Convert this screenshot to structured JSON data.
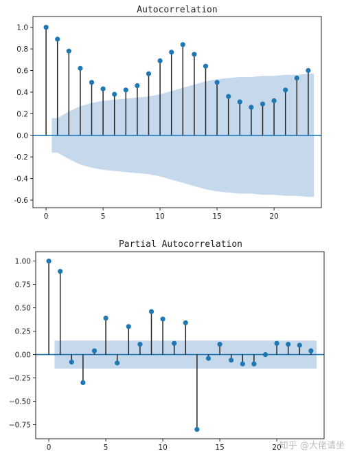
{
  "chart_data": [
    {
      "type": "stem",
      "title": "Autocorrelation",
      "xlabel": "",
      "ylabel": "",
      "xlim": [
        -1.15,
        24.15
      ],
      "ylim": [
        -0.67,
        1.1
      ],
      "xticks": [
        0,
        5,
        10,
        15,
        20
      ],
      "yticks": [
        1.0,
        0.8,
        0.6,
        0.4,
        0.2,
        0.0,
        -0.2,
        -0.4,
        -0.6
      ],
      "ytick_labels": [
        "1.0",
        "0.8",
        "0.6",
        "0.4",
        "0.2",
        "0.0",
        "-0.2",
        "-0.4",
        "-0.6"
      ],
      "x": [
        0,
        1,
        2,
        3,
        4,
        5,
        6,
        7,
        8,
        9,
        10,
        11,
        12,
        13,
        14,
        15,
        16,
        17,
        18,
        19,
        20,
        21,
        22,
        23
      ],
      "values": [
        1.0,
        0.89,
        0.78,
        0.62,
        0.49,
        0.43,
        0.38,
        0.42,
        0.46,
        0.57,
        0.69,
        0.77,
        0.84,
        0.75,
        0.64,
        0.49,
        0.36,
        0.31,
        0.26,
        0.29,
        0.32,
        0.42,
        0.53,
        0.6
      ],
      "confidence_band": [
        0.0,
        0.16,
        0.22,
        0.27,
        0.3,
        0.32,
        0.33,
        0.34,
        0.35,
        0.36,
        0.38,
        0.41,
        0.44,
        0.47,
        0.5,
        0.52,
        0.53,
        0.54,
        0.54,
        0.55,
        0.55,
        0.56,
        0.56,
        0.57
      ],
      "colors": {
        "marker": "#1f77b4",
        "stem": "#222222",
        "band": "#c5d8ec",
        "zero_line": "#1f77b4"
      }
    },
    {
      "type": "stem",
      "title": "Partial Autocorrelation",
      "xlabel": "",
      "ylabel": "",
      "xlim": [
        -1.15,
        24.15
      ],
      "ylim": [
        -0.9,
        1.1
      ],
      "xticks": [
        0,
        5,
        10,
        15,
        20
      ],
      "yticks": [
        1.0,
        0.75,
        0.5,
        0.25,
        0.0,
        -0.25,
        -0.5,
        -0.75
      ],
      "ytick_labels": [
        "1.00",
        "0.75",
        "0.50",
        "0.25",
        "0.00",
        "−0.25",
        "−0.50",
        "−0.75"
      ],
      "x": [
        0,
        1,
        2,
        3,
        4,
        5,
        6,
        7,
        8,
        9,
        10,
        11,
        12,
        13,
        14,
        15,
        16,
        17,
        18,
        19,
        20,
        21,
        22,
        23
      ],
      "values": [
        1.0,
        0.89,
        -0.08,
        -0.3,
        0.04,
        0.39,
        -0.09,
        0.3,
        0.11,
        0.46,
        0.38,
        0.12,
        0.34,
        -0.8,
        -0.04,
        0.11,
        -0.06,
        -0.1,
        -0.1,
        0.0,
        0.12,
        0.11,
        0.1,
        0.04
      ],
      "confidence_band": 0.15,
      "colors": {
        "marker": "#1f77b4",
        "stem": "#222222",
        "band": "#c5d8ec",
        "zero_line": "#1f77b4"
      }
    }
  ],
  "watermark": "知乎 @大佬请坐"
}
